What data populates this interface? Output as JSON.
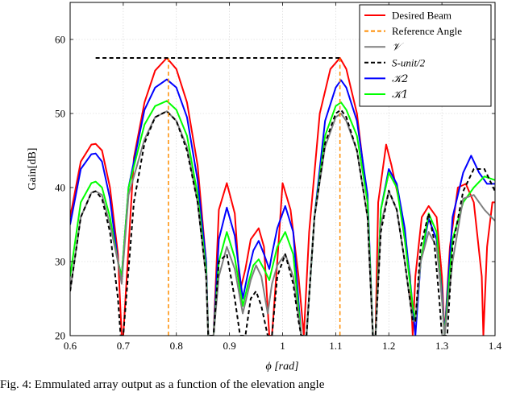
{
  "caption": "Fig. 4: Emmulated array output as a function of the elevation angle",
  "chart_data": {
    "type": "line",
    "title": "",
    "xlabel": "ϕ [rad]",
    "ylabel": "Gain[dB]",
    "xlim": [
      0.6,
      1.4
    ],
    "ylim": [
      20,
      65
    ],
    "xticks": [
      0.6,
      0.7,
      0.8,
      0.9,
      1.0,
      1.1,
      1.2,
      1.3,
      1.4
    ],
    "xtick_labels": [
      "0.6",
      "0.7",
      "0.8",
      "0.9",
      "1",
      "1.1",
      "1.2",
      "1.3",
      "1.4"
    ],
    "yticks": [
      20,
      30,
      40,
      50,
      60
    ],
    "ytick_labels": [
      "20",
      "30",
      "40",
      "50",
      "60"
    ],
    "grid": true,
    "legend_position": "top-right",
    "series": [
      {
        "name": "Desired Beam",
        "color": "#ff0000",
        "style": "solid",
        "x": [
          0.6,
          0.62,
          0.64,
          0.648,
          0.66,
          0.675,
          0.69,
          0.697,
          0.7,
          0.72,
          0.74,
          0.76,
          0.782,
          0.8,
          0.82,
          0.84,
          0.856,
          0.86,
          0.87,
          0.88,
          0.895,
          0.91,
          0.92,
          0.93,
          0.94,
          0.955,
          0.965,
          0.975,
          0.98,
          0.99,
          1.0,
          1.015,
          1.03,
          1.04,
          1.05,
          1.07,
          1.09,
          1.108,
          1.12,
          1.14,
          1.16,
          1.17,
          1.175,
          1.18,
          1.195,
          1.205,
          1.22,
          1.24,
          1.245,
          1.25,
          1.262,
          1.275,
          1.29,
          1.3,
          1.305,
          1.315,
          1.33,
          1.345,
          1.36,
          1.375,
          1.378,
          1.385,
          1.395,
          1.4
        ],
        "y": [
          36.0,
          43.5,
          45.8,
          45.9,
          45.0,
          40.0,
          31.0,
          20.0,
          20.0,
          44.0,
          51.5,
          55.8,
          57.5,
          56.0,
          51.5,
          43.0,
          30.0,
          20.0,
          20.0,
          37.0,
          40.6,
          36.5,
          26.0,
          29.0,
          33.0,
          34.5,
          32.0,
          20.0,
          20.0,
          30.0,
          40.6,
          37.0,
          28.0,
          20.0,
          34.0,
          50.0,
          56.0,
          57.5,
          56.0,
          50.0,
          38.0,
          20.0,
          20.0,
          38.0,
          45.8,
          43.0,
          38.0,
          28.0,
          20.0,
          28.0,
          36.0,
          37.5,
          36.0,
          28.0,
          20.0,
          32.0,
          40.0,
          40.5,
          38.0,
          28.0,
          20.0,
          32.0,
          38.0,
          38.0
        ]
      },
      {
        "name": "Reference Angle",
        "color": "#ff8c00",
        "style": "dashed",
        "x": [
          0.785,
          0.785,
          null,
          1.108,
          1.108
        ],
        "y": [
          20,
          57.5,
          null,
          20,
          57.5
        ]
      },
      {
        "name": "𝒱",
        "color": "#808080",
        "style": "solid",
        "x": [
          0.6,
          0.62,
          0.64,
          0.648,
          0.66,
          0.675,
          0.69,
          0.697,
          0.71,
          0.74,
          0.76,
          0.782,
          0.8,
          0.82,
          0.84,
          0.856,
          0.86,
          0.87,
          0.88,
          0.895,
          0.91,
          0.925,
          0.94,
          0.95,
          0.96,
          0.972,
          0.98,
          0.99,
          1.005,
          1.02,
          1.035,
          1.045,
          1.06,
          1.08,
          1.1,
          1.11,
          1.12,
          1.14,
          1.16,
          1.17,
          1.175,
          1.185,
          1.2,
          1.215,
          1.23,
          1.245,
          1.25,
          1.26,
          1.275,
          1.29,
          1.3,
          1.305,
          1.32,
          1.34,
          1.36,
          1.38,
          1.4
        ],
        "y": [
          26.0,
          36.0,
          39.3,
          39.5,
          39.0,
          35.0,
          30.0,
          27.0,
          39.0,
          46.5,
          49.5,
          50.3,
          49.0,
          45.5,
          38.0,
          28.0,
          20.0,
          20.0,
          28.0,
          32.0,
          29.0,
          23.0,
          27.5,
          29.5,
          28.0,
          23.0,
          27.0,
          29.5,
          31.0,
          28.0,
          20.0,
          20.0,
          36.0,
          45.5,
          49.5,
          50.0,
          49.0,
          45.0,
          36.0,
          20.0,
          20.0,
          35.0,
          39.5,
          37.0,
          30.0,
          22.0,
          22.0,
          30.0,
          34.0,
          32.0,
          25.0,
          20.0,
          30.0,
          38.5,
          39.0,
          37.0,
          35.5
        ]
      },
      {
        "name": "S-unit/2",
        "color": "#000000",
        "style": "dashed",
        "x": [
          0.6,
          0.62,
          0.64,
          0.648,
          0.66,
          0.675,
          0.69,
          0.695,
          0.7,
          0.72,
          0.74,
          0.76,
          0.782,
          0.8,
          0.82,
          0.84,
          0.856,
          0.86,
          0.87,
          0.88,
          0.895,
          0.91,
          0.92,
          0.93,
          0.94,
          0.95,
          0.96,
          0.972,
          0.98,
          0.99,
          1.005,
          1.02,
          1.03,
          1.035,
          1.045,
          1.06,
          1.08,
          1.1,
          1.11,
          1.12,
          1.14,
          1.16,
          1.17,
          1.175,
          1.185,
          1.2,
          1.215,
          1.23,
          1.245,
          1.25,
          1.26,
          1.275,
          1.285,
          1.295,
          1.3,
          1.31,
          1.32,
          1.34,
          1.36,
          1.38,
          1.4
        ],
        "y": [
          26.0,
          36.0,
          39.3,
          39.5,
          38.5,
          34.0,
          25.0,
          20.0,
          20.0,
          38.0,
          46.0,
          49.5,
          50.3,
          49.0,
          45.0,
          38.0,
          28.0,
          20.0,
          20.0,
          30.0,
          31.0,
          25.0,
          20.0,
          20.0,
          25.0,
          26.0,
          24.0,
          20.0,
          20.0,
          28.0,
          31.0,
          27.0,
          22.0,
          20.0,
          20.0,
          36.0,
          46.0,
          50.0,
          50.5,
          49.5,
          45.0,
          36.0,
          20.0,
          20.0,
          34.0,
          39.6,
          37.0,
          30.0,
          22.0,
          22.0,
          32.0,
          36.5,
          33.0,
          25.0,
          20.0,
          20.0,
          32.0,
          39.5,
          42.5,
          42.5,
          39.5
        ]
      },
      {
        "name": "𝒦2",
        "color": "#0000ff",
        "style": "solid",
        "x": [
          0.6,
          0.62,
          0.64,
          0.648,
          0.66,
          0.675,
          0.69,
          0.697,
          0.71,
          0.74,
          0.76,
          0.782,
          0.8,
          0.82,
          0.84,
          0.856,
          0.86,
          0.87,
          0.88,
          0.895,
          0.91,
          0.925,
          0.935,
          0.945,
          0.955,
          0.965,
          0.975,
          0.98,
          0.99,
          1.005,
          1.02,
          1.035,
          1.045,
          1.06,
          1.08,
          1.1,
          1.11,
          1.12,
          1.14,
          1.16,
          1.17,
          1.175,
          1.185,
          1.2,
          1.215,
          1.23,
          1.245,
          1.25,
          1.26,
          1.275,
          1.29,
          1.3,
          1.305,
          1.32,
          1.34,
          1.355,
          1.37,
          1.385,
          1.4
        ],
        "y": [
          35.0,
          42.5,
          44.5,
          44.6,
          43.5,
          38.5,
          30.0,
          28.0,
          40.0,
          50.5,
          53.5,
          54.6,
          53.5,
          49.5,
          41.0,
          30.0,
          20.0,
          20.0,
          33.0,
          37.3,
          33.5,
          25.0,
          28.5,
          31.5,
          32.8,
          31.0,
          29.0,
          31.0,
          34.5,
          37.5,
          34.0,
          20.0,
          20.0,
          36.0,
          49.0,
          53.5,
          54.5,
          53.5,
          49.0,
          39.0,
          20.0,
          20.0,
          37.0,
          42.5,
          40.5,
          34.5,
          24.0,
          20.0,
          30.0,
          35.8,
          33.0,
          26.0,
          20.0,
          36.0,
          42.0,
          44.3,
          42.0,
          40.5,
          40.5
        ]
      },
      {
        "name": "𝒦1",
        "color": "#00ff00",
        "style": "solid",
        "x": [
          0.6,
          0.62,
          0.64,
          0.648,
          0.66,
          0.675,
          0.69,
          0.697,
          0.71,
          0.74,
          0.76,
          0.782,
          0.8,
          0.82,
          0.84,
          0.856,
          0.86,
          0.87,
          0.88,
          0.895,
          0.91,
          0.925,
          0.935,
          0.945,
          0.955,
          0.965,
          0.975,
          0.98,
          0.99,
          1.005,
          1.02,
          1.035,
          1.045,
          1.06,
          1.08,
          1.1,
          1.11,
          1.12,
          1.14,
          1.16,
          1.17,
          1.175,
          1.185,
          1.2,
          1.215,
          1.23,
          1.245,
          1.25,
          1.26,
          1.275,
          1.29,
          1.3,
          1.305,
          1.32,
          1.34,
          1.36,
          1.38,
          1.4
        ],
        "y": [
          28.0,
          38.0,
          40.6,
          40.8,
          40.0,
          36.0,
          30.0,
          28.0,
          40.0,
          48.5,
          51.0,
          51.7,
          50.5,
          47.0,
          39.0,
          29.0,
          20.0,
          20.0,
          30.0,
          34.0,
          30.5,
          24.0,
          27.0,
          29.5,
          30.3,
          29.0,
          27.5,
          29.0,
          32.0,
          34.0,
          31.0,
          20.0,
          20.0,
          36.0,
          47.0,
          51.0,
          51.5,
          50.5,
          47.0,
          38.0,
          20.0,
          20.0,
          37.0,
          42.0,
          40.0,
          33.0,
          24.0,
          22.0,
          30.0,
          36.5,
          34.0,
          25.0,
          20.0,
          33.0,
          38.0,
          40.0,
          41.5,
          41.0
        ]
      },
      {
        "name": "",
        "color": "#000000",
        "style": "dashed",
        "x": [
          0.648,
          1.108
        ],
        "y": [
          57.5,
          57.5
        ]
      }
    ]
  }
}
